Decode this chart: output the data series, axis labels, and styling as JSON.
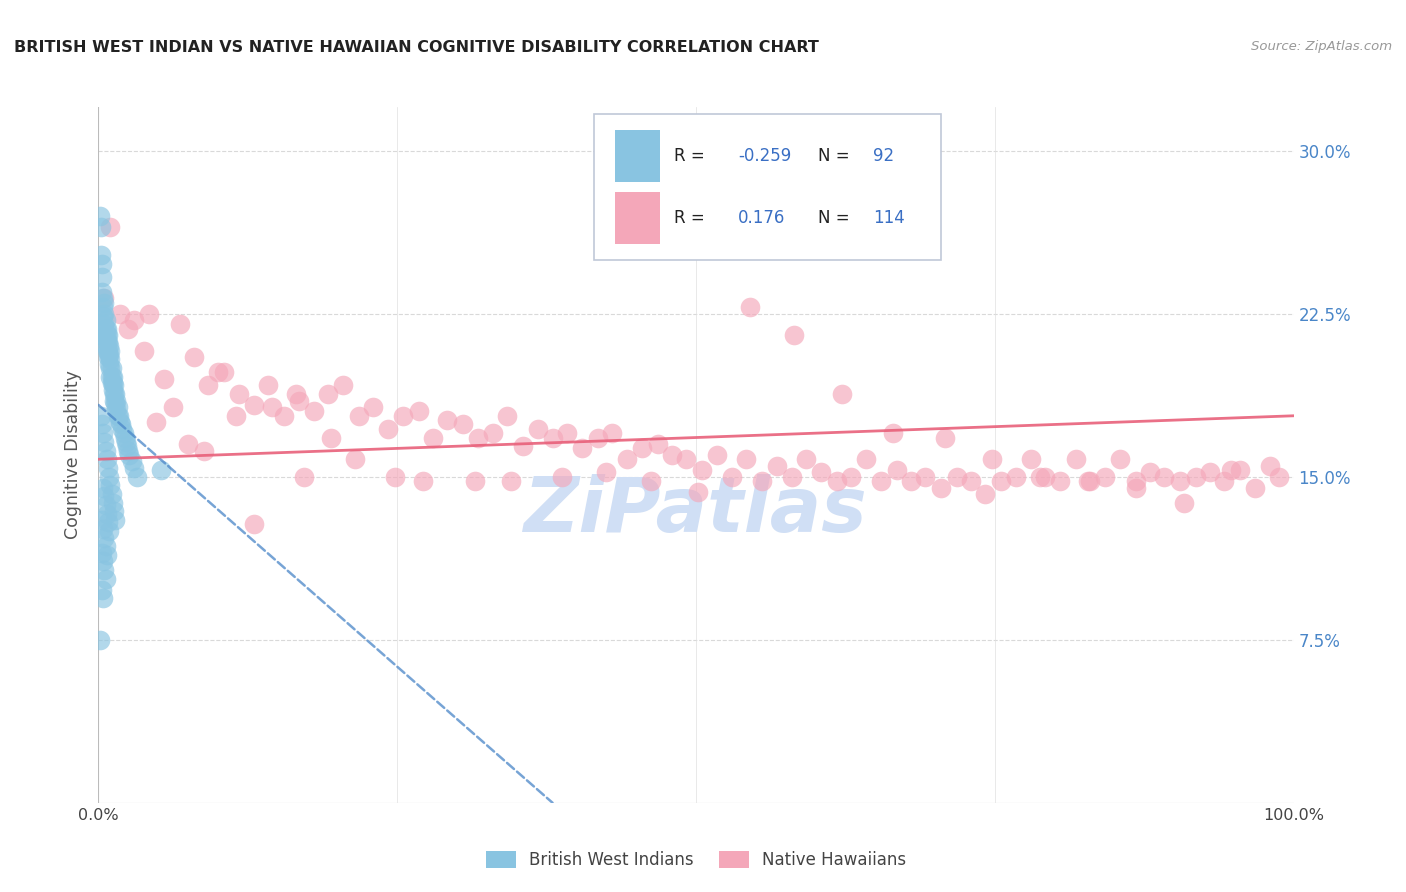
{
  "title": "BRITISH WEST INDIAN VS NATIVE HAWAIIAN COGNITIVE DISABILITY CORRELATION CHART",
  "source": "Source: ZipAtlas.com",
  "ylabel": "Cognitive Disability",
  "xlim": [
    0,
    1.0
  ],
  "ylim": [
    0,
    0.32
  ],
  "yticks": [
    0.075,
    0.15,
    0.225,
    0.3
  ],
  "ytick_labels": [
    "7.5%",
    "15.0%",
    "22.5%",
    "30.0%"
  ],
  "xticks": [
    0.0,
    0.25,
    0.5,
    0.75,
    1.0
  ],
  "xtick_labels": [
    "0.0%",
    "",
    "",
    "",
    "100.0%"
  ],
  "blue_color": "#89c4e1",
  "pink_color": "#f4a7b9",
  "blue_line_color": "#4a86c8",
  "pink_line_color": "#e8607a",
  "legend_text_color": "#3a6fc4",
  "legend_rn_color": "#333333",
  "background_color": "#ffffff",
  "grid_color": "#d0d0d0",
  "watermark_color": "#d0dff5",
  "title_color": "#222222",
  "right_tick_color": "#4a86c8",
  "blue_r": "-0.259",
  "blue_n": "92",
  "pink_r": "0.176",
  "pink_n": "114",
  "blue_scatter_x": [
    0.001,
    0.002,
    0.002,
    0.003,
    0.003,
    0.003,
    0.004,
    0.004,
    0.004,
    0.005,
    0.005,
    0.005,
    0.005,
    0.006,
    0.006,
    0.006,
    0.006,
    0.007,
    0.007,
    0.007,
    0.007,
    0.008,
    0.008,
    0.008,
    0.008,
    0.009,
    0.009,
    0.009,
    0.01,
    0.01,
    0.01,
    0.01,
    0.011,
    0.011,
    0.011,
    0.012,
    0.012,
    0.012,
    0.013,
    0.013,
    0.013,
    0.014,
    0.014,
    0.015,
    0.015,
    0.016,
    0.016,
    0.017,
    0.018,
    0.019,
    0.02,
    0.021,
    0.022,
    0.023,
    0.024,
    0.025,
    0.026,
    0.028,
    0.03,
    0.032,
    0.002,
    0.003,
    0.004,
    0.005,
    0.006,
    0.007,
    0.008,
    0.009,
    0.01,
    0.011,
    0.012,
    0.013,
    0.014,
    0.004,
    0.005,
    0.006,
    0.007,
    0.008,
    0.009,
    0.003,
    0.004,
    0.005,
    0.006,
    0.007,
    0.003,
    0.004,
    0.005,
    0.006,
    0.003,
    0.004,
    0.001,
    0.052
  ],
  "blue_scatter_y": [
    0.27,
    0.265,
    0.252,
    0.248,
    0.242,
    0.235,
    0.232,
    0.228,
    0.224,
    0.23,
    0.225,
    0.22,
    0.215,
    0.222,
    0.218,
    0.214,
    0.21,
    0.218,
    0.215,
    0.212,
    0.208,
    0.215,
    0.212,
    0.208,
    0.205,
    0.21,
    0.206,
    0.202,
    0.208,
    0.204,
    0.2,
    0.196,
    0.2,
    0.196,
    0.193,
    0.196,
    0.193,
    0.19,
    0.192,
    0.188,
    0.185,
    0.188,
    0.184,
    0.185,
    0.181,
    0.182,
    0.178,
    0.178,
    0.175,
    0.174,
    0.172,
    0.17,
    0.168,
    0.166,
    0.164,
    0.162,
    0.16,
    0.157,
    0.154,
    0.15,
    0.178,
    0.174,
    0.17,
    0.166,
    0.162,
    0.158,
    0.154,
    0.15,
    0.146,
    0.142,
    0.138,
    0.134,
    0.13,
    0.145,
    0.141,
    0.137,
    0.133,
    0.129,
    0.125,
    0.13,
    0.126,
    0.122,
    0.118,
    0.114,
    0.115,
    0.111,
    0.107,
    0.103,
    0.098,
    0.094,
    0.075,
    0.153
  ],
  "pink_scatter_x": [
    0.005,
    0.01,
    0.018,
    0.03,
    0.042,
    0.055,
    0.068,
    0.08,
    0.092,
    0.105,
    0.118,
    0.13,
    0.142,
    0.155,
    0.168,
    0.18,
    0.192,
    0.205,
    0.218,
    0.23,
    0.242,
    0.255,
    0.268,
    0.28,
    0.292,
    0.305,
    0.318,
    0.33,
    0.342,
    0.355,
    0.368,
    0.38,
    0.392,
    0.405,
    0.418,
    0.43,
    0.442,
    0.455,
    0.468,
    0.48,
    0.492,
    0.505,
    0.518,
    0.53,
    0.542,
    0.555,
    0.568,
    0.58,
    0.592,
    0.605,
    0.618,
    0.63,
    0.642,
    0.655,
    0.668,
    0.68,
    0.692,
    0.705,
    0.718,
    0.73,
    0.742,
    0.755,
    0.768,
    0.78,
    0.792,
    0.805,
    0.818,
    0.83,
    0.842,
    0.855,
    0.868,
    0.88,
    0.892,
    0.905,
    0.918,
    0.93,
    0.942,
    0.955,
    0.968,
    0.98,
    0.025,
    0.038,
    0.062,
    0.075,
    0.1,
    0.115,
    0.145,
    0.165,
    0.195,
    0.215,
    0.248,
    0.272,
    0.315,
    0.345,
    0.388,
    0.425,
    0.462,
    0.502,
    0.545,
    0.582,
    0.622,
    0.665,
    0.708,
    0.748,
    0.788,
    0.828,
    0.868,
    0.908,
    0.948,
    0.988,
    0.048,
    0.088,
    0.13,
    0.172
  ],
  "pink_scatter_y": [
    0.232,
    0.265,
    0.225,
    0.222,
    0.225,
    0.195,
    0.22,
    0.205,
    0.192,
    0.198,
    0.188,
    0.183,
    0.192,
    0.178,
    0.185,
    0.18,
    0.188,
    0.192,
    0.178,
    0.182,
    0.172,
    0.178,
    0.18,
    0.168,
    0.176,
    0.174,
    0.168,
    0.17,
    0.178,
    0.164,
    0.172,
    0.168,
    0.17,
    0.163,
    0.168,
    0.17,
    0.158,
    0.163,
    0.165,
    0.16,
    0.158,
    0.153,
    0.16,
    0.15,
    0.158,
    0.148,
    0.155,
    0.15,
    0.158,
    0.152,
    0.148,
    0.15,
    0.158,
    0.148,
    0.153,
    0.148,
    0.15,
    0.145,
    0.15,
    0.148,
    0.142,
    0.148,
    0.15,
    0.158,
    0.15,
    0.148,
    0.158,
    0.148,
    0.15,
    0.158,
    0.148,
    0.152,
    0.15,
    0.148,
    0.15,
    0.152,
    0.148,
    0.153,
    0.145,
    0.155,
    0.218,
    0.208,
    0.182,
    0.165,
    0.198,
    0.178,
    0.182,
    0.188,
    0.168,
    0.158,
    0.15,
    0.148,
    0.148,
    0.148,
    0.15,
    0.152,
    0.148,
    0.143,
    0.228,
    0.215,
    0.188,
    0.17,
    0.168,
    0.158,
    0.15,
    0.148,
    0.145,
    0.138,
    0.153,
    0.15,
    0.175,
    0.162,
    0.128,
    0.15
  ],
  "blue_line_x0": 0.0,
  "blue_line_x1": 0.38,
  "blue_line_y0": 0.183,
  "blue_line_y1": 0.0,
  "pink_line_x0": 0.0,
  "pink_line_x1": 1.0,
  "pink_line_y0": 0.158,
  "pink_line_y1": 0.178
}
